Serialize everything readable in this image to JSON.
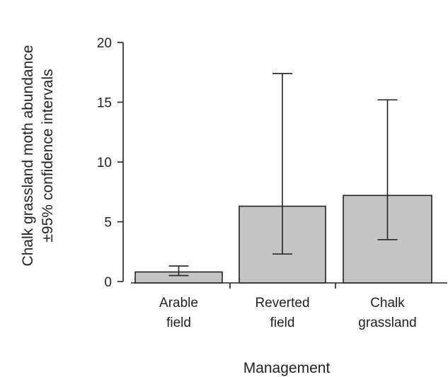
{
  "chart_data": {
    "type": "bar",
    "categories": [
      [
        "Arable",
        "field"
      ],
      [
        "Reverted",
        "field"
      ],
      [
        "Chalk",
        "grassland"
      ]
    ],
    "values": [
      0.8,
      6.3,
      7.2
    ],
    "error_bars": [
      {
        "low": 0.5,
        "high": 1.3
      },
      {
        "low": 2.3,
        "high": 17.4
      },
      {
        "low": 3.5,
        "high": 15.2
      }
    ],
    "ylim": [
      0,
      20
    ],
    "yticks": [
      0,
      5,
      10,
      15,
      20
    ],
    "xlabel": "Management",
    "ylabel_lines": [
      "Chalk grassland moth abundance",
      "±95% confidence intervals"
    ],
    "grid": false,
    "bar_color": "#c4c4c4"
  }
}
